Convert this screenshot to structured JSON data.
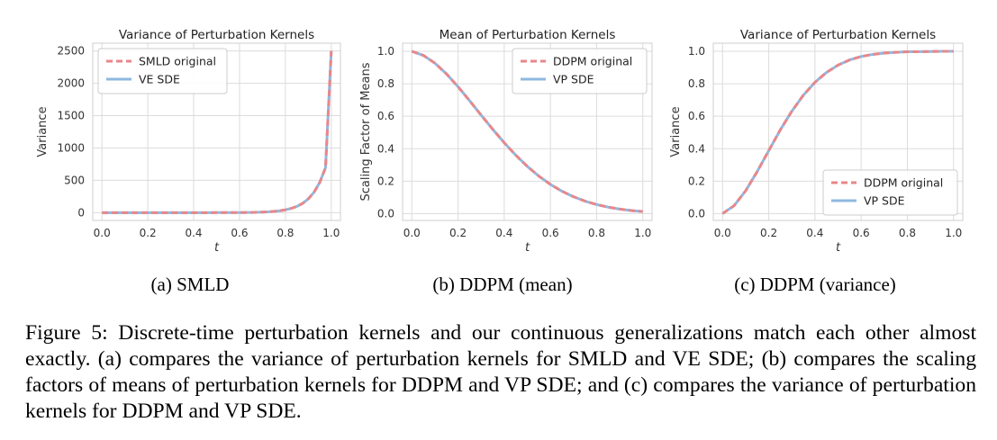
{
  "chart_data": [
    {
      "type": "line",
      "title": "Variance of Perturbation Kernels",
      "xlabel": "t",
      "ylabel": "Variance",
      "xlim": [
        -0.04,
        1.04
      ],
      "ylim": [
        -120,
        2620
      ],
      "xticks": [
        0.0,
        0.2,
        0.4,
        0.6,
        0.8,
        1.0
      ],
      "xtick_labels": [
        "0.0",
        "0.2",
        "0.4",
        "0.6",
        "0.8",
        "1.0"
      ],
      "yticks": [
        0,
        500,
        1000,
        1500,
        2000,
        2500
      ],
      "ytick_labels": [
        "0",
        "500",
        "1000",
        "1500",
        "2000",
        "2500"
      ],
      "grid": true,
      "legend_position": "top-left",
      "x": [
        0.0,
        0.05,
        0.1,
        0.15,
        0.2,
        0.25,
        0.3,
        0.35,
        0.4,
        0.45,
        0.5,
        0.55,
        0.6,
        0.65,
        0.7,
        0.725,
        0.75,
        0.775,
        0.8,
        0.825,
        0.85,
        0.875,
        0.9,
        0.925,
        0.95,
        0.975,
        1.0
      ],
      "series": [
        {
          "name": "SMLD original",
          "color": "#e8878a",
          "style": "dashed",
          "values": [
            0,
            0,
            0,
            0,
            0,
            0,
            0,
            0,
            0,
            0,
            1,
            1,
            2,
            4,
            9,
            13,
            20,
            30,
            44,
            66,
            97,
            144,
            214,
            317,
            470,
            696,
            2500
          ]
        },
        {
          "name": "VE SDE",
          "color": "#8fb8e0",
          "style": "solid",
          "values": [
            0,
            0,
            0,
            0,
            0,
            0,
            0,
            0,
            0,
            0,
            1,
            1,
            2,
            4,
            9,
            13,
            20,
            30,
            44,
            66,
            97,
            144,
            214,
            317,
            470,
            696,
            2500
          ]
        }
      ]
    },
    {
      "type": "line",
      "title": "Mean of Perturbation Kernels",
      "xlabel": "t",
      "ylabel": "Scaling Factor of Means",
      "xlim": [
        -0.04,
        1.04
      ],
      "ylim": [
        -0.042,
        1.05
      ],
      "xticks": [
        0.0,
        0.2,
        0.4,
        0.6,
        0.8,
        1.0
      ],
      "xtick_labels": [
        "0.0",
        "0.2",
        "0.4",
        "0.6",
        "0.8",
        "1.0"
      ],
      "yticks": [
        0.0,
        0.2,
        0.4,
        0.6,
        0.8,
        1.0
      ],
      "ytick_labels": [
        "0.0",
        "0.2",
        "0.4",
        "0.6",
        "0.8",
        "1.0"
      ],
      "grid": true,
      "legend_position": "top-right",
      "x": [
        0.0,
        0.05,
        0.1,
        0.15,
        0.2,
        0.25,
        0.3,
        0.35,
        0.4,
        0.45,
        0.5,
        0.55,
        0.6,
        0.65,
        0.7,
        0.75,
        0.8,
        0.85,
        0.9,
        0.95,
        1.0
      ],
      "series": [
        {
          "name": "DDPM original",
          "color": "#e8878a",
          "style": "dashed",
          "values": [
            1.0,
            0.975,
            0.927,
            0.861,
            0.782,
            0.696,
            0.607,
            0.52,
            0.437,
            0.36,
            0.291,
            0.231,
            0.18,
            0.138,
            0.104,
            0.077,
            0.056,
            0.04,
            0.028,
            0.019,
            0.013
          ]
        },
        {
          "name": "VP SDE",
          "color": "#8fb8e0",
          "style": "solid",
          "values": [
            1.0,
            0.975,
            0.927,
            0.861,
            0.782,
            0.696,
            0.607,
            0.52,
            0.437,
            0.36,
            0.291,
            0.231,
            0.18,
            0.138,
            0.104,
            0.077,
            0.056,
            0.04,
            0.028,
            0.019,
            0.013
          ]
        }
      ]
    },
    {
      "type": "line",
      "title": "Variance of Perturbation Kernels",
      "xlabel": "t",
      "ylabel": "Variance",
      "xlim": [
        -0.04,
        1.04
      ],
      "ylim": [
        -0.042,
        1.05
      ],
      "xticks": [
        0.0,
        0.2,
        0.4,
        0.6,
        0.8,
        1.0
      ],
      "xtick_labels": [
        "0.0",
        "0.2",
        "0.4",
        "0.6",
        "0.8",
        "1.0"
      ],
      "yticks": [
        0.0,
        0.2,
        0.4,
        0.6,
        0.8,
        1.0
      ],
      "ytick_labels": [
        "0.0",
        "0.2",
        "0.4",
        "0.6",
        "0.8",
        "1.0"
      ],
      "grid": true,
      "legend_position": "bottom-right",
      "x": [
        0.0,
        0.05,
        0.1,
        0.15,
        0.2,
        0.25,
        0.3,
        0.35,
        0.4,
        0.45,
        0.5,
        0.55,
        0.6,
        0.65,
        0.7,
        0.75,
        0.8,
        0.85,
        0.9,
        0.95,
        1.0
      ],
      "series": [
        {
          "name": "DDPM original",
          "color": "#e8878a",
          "style": "dashed",
          "values": [
            0.0,
            0.049,
            0.141,
            0.259,
            0.388,
            0.516,
            0.631,
            0.73,
            0.809,
            0.87,
            0.915,
            0.947,
            0.968,
            0.981,
            0.989,
            0.994,
            0.997,
            0.998,
            0.999,
            1.0,
            1.0
          ]
        },
        {
          "name": "VP SDE",
          "color": "#8fb8e0",
          "style": "solid",
          "values": [
            0.0,
            0.049,
            0.141,
            0.259,
            0.388,
            0.516,
            0.631,
            0.73,
            0.809,
            0.87,
            0.915,
            0.947,
            0.968,
            0.981,
            0.989,
            0.994,
            0.997,
            0.998,
            0.999,
            1.0,
            1.0
          ]
        }
      ]
    }
  ],
  "subcaptions": [
    "(a) SMLD",
    "(b) DDPM (mean)",
    "(c) DDPM (variance)"
  ],
  "caption": "Figure 5: Discrete-time perturbation kernels and our continuous generalizations match each other almost exactly. (a) compares the variance of perturbation kernels for SMLD and VE SDE; (b) compares the scaling factors of means of perturbation kernels for DDPM and VP SDE; and (c) compares the variance of perturbation kernels for DDPM and VP SDE."
}
